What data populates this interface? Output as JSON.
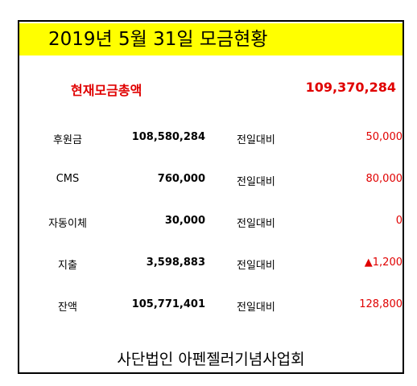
{
  "header": {
    "title": "2019년 5월 31일 모금현황"
  },
  "total": {
    "label": "현재모금총액",
    "value": "109,370,284"
  },
  "rows": [
    {
      "label": "후원금",
      "amount": "108,580,284",
      "compare_label": "전일대비",
      "change": "50,000"
    },
    {
      "label": "CMS",
      "amount": "760,000",
      "compare_label": "전일대비",
      "change": "80,000"
    },
    {
      "label": "자동이체",
      "amount": "30,000",
      "compare_label": "전일대비",
      "change": "0"
    },
    {
      "label": "지출",
      "amount": "3,598,883",
      "compare_label": "전일대비",
      "change": "▲1,200"
    },
    {
      "label": "잔액",
      "amount": "105,771,401",
      "compare_label": "전일대비",
      "change": "128,800"
    }
  ],
  "footer": "사단법인 아펜젤러기념사업회"
}
